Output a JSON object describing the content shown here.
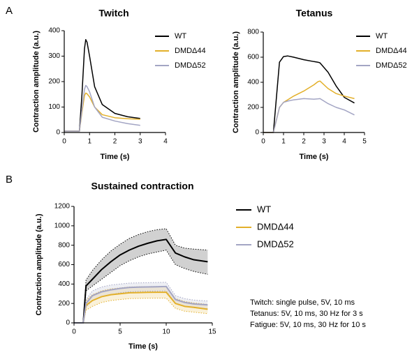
{
  "panels": [
    "A",
    "B"
  ],
  "notes": [
    "Twitch: single pulse, 5V, 10 ms",
    "Tetanus: 5V, 10 ms, 30 Hz for 3 s",
    "Fatigue: 5V, 10 ms, 30 Hz for 10 s"
  ],
  "chart_data": [
    {
      "type": "line",
      "title": "Twitch",
      "xlabel": "Time (s)",
      "ylabel": "Contraction amplitude (a.u.)",
      "xlim": [
        0,
        4
      ],
      "xticks": [
        0,
        1,
        2,
        3,
        4
      ],
      "ylim": [
        0,
        400
      ],
      "yticks": [
        0,
        100,
        200,
        300,
        400
      ],
      "x": [
        0,
        0.6,
        0.7,
        0.8,
        0.85,
        0.9,
        1.0,
        1.2,
        1.5,
        2.0,
        2.5,
        3.0
      ],
      "series": [
        {
          "name": "WT",
          "color": "#000000",
          "values": [
            5,
            5,
            150,
            330,
            365,
            355,
            300,
            180,
            110,
            75,
            62,
            55
          ]
        },
        {
          "name": "DMDΔ44",
          "color": "#e3b02a",
          "values": [
            5,
            5,
            80,
            145,
            155,
            152,
            140,
            100,
            70,
            58,
            54,
            52
          ]
        },
        {
          "name": "DMDΔ52",
          "color": "#a3a5c4",
          "values": [
            5,
            5,
            90,
            170,
            185,
            180,
            160,
            100,
            60,
            45,
            35,
            28
          ]
        }
      ]
    },
    {
      "type": "line",
      "title": "Tetanus",
      "xlabel": "Time (s)",
      "ylabel": "Contraction amplitude (a.u.)",
      "xlim": [
        0,
        5
      ],
      "xticks": [
        0,
        1,
        2,
        3,
        4,
        5
      ],
      "ylim": [
        0,
        800
      ],
      "yticks": [
        0,
        200,
        400,
        600,
        800
      ],
      "x": [
        0,
        0.5,
        0.8,
        1.0,
        1.2,
        1.5,
        2.0,
        2.5,
        2.7,
        2.8,
        3.2,
        3.6,
        4.0,
        4.5
      ],
      "series": [
        {
          "name": "WT",
          "color": "#000000",
          "values": [
            0,
            0,
            560,
            605,
            610,
            600,
            580,
            565,
            560,
            555,
            480,
            370,
            280,
            235
          ]
        },
        {
          "name": "DMDΔ44",
          "color": "#e3b02a",
          "values": [
            0,
            0,
            200,
            240,
            260,
            290,
            330,
            380,
            405,
            410,
            350,
            310,
            290,
            270
          ]
        },
        {
          "name": "DMDΔ52",
          "color": "#a3a5c4",
          "values": [
            0,
            0,
            200,
            240,
            250,
            260,
            270,
            265,
            268,
            270,
            230,
            200,
            180,
            140
          ]
        }
      ]
    },
    {
      "type": "line",
      "title": "Sustained contraction",
      "xlabel": "Time (s)",
      "ylabel": "Contraction amplitude (a.u.)",
      "xlim": [
        0,
        15
      ],
      "xticks": [
        0,
        5,
        10,
        15
      ],
      "ylim": [
        0,
        1200
      ],
      "yticks": [
        0,
        200,
        400,
        600,
        800,
        1000,
        1200
      ],
      "x": [
        0,
        1,
        1.3,
        2,
        3,
        4,
        5,
        6,
        7,
        8,
        9,
        10,
        11,
        12,
        13,
        14.5
      ],
      "series": [
        {
          "name": "WT",
          "color": "#000000",
          "values": [
            0,
            0,
            380,
            450,
            550,
            630,
            700,
            750,
            790,
            820,
            845,
            860,
            720,
            680,
            650,
            630
          ],
          "upper": [
            0,
            0,
            440,
            540,
            650,
            740,
            810,
            870,
            910,
            940,
            960,
            970,
            800,
            770,
            760,
            750
          ],
          "lower": [
            0,
            0,
            330,
            380,
            450,
            520,
            590,
            640,
            680,
            710,
            730,
            750,
            600,
            560,
            530,
            500
          ]
        },
        {
          "name": "DMDΔ44",
          "color": "#e3b02a",
          "values": [
            0,
            0,
            180,
            230,
            270,
            290,
            300,
            310,
            312,
            314,
            315,
            315,
            200,
            170,
            160,
            140
          ],
          "upper": [
            0,
            0,
            230,
            290,
            330,
            350,
            360,
            370,
            372,
            374,
            375,
            375,
            250,
            220,
            205,
            190
          ],
          "lower": [
            0,
            0,
            130,
            170,
            210,
            230,
            240,
            250,
            252,
            254,
            255,
            255,
            150,
            120,
            110,
            95
          ]
        },
        {
          "name": "DMDΔ52",
          "color": "#a3a5c4",
          "values": [
            0,
            0,
            200,
            280,
            320,
            340,
            355,
            365,
            368,
            370,
            372,
            375,
            240,
            210,
            195,
            185
          ],
          "upper": [
            0,
            0,
            240,
            330,
            370,
            390,
            400,
            410,
            412,
            414,
            416,
            418,
            280,
            250,
            235,
            225
          ],
          "lower": [
            0,
            0,
            160,
            230,
            270,
            290,
            310,
            320,
            324,
            326,
            328,
            330,
            200,
            170,
            155,
            145
          ]
        }
      ]
    }
  ]
}
